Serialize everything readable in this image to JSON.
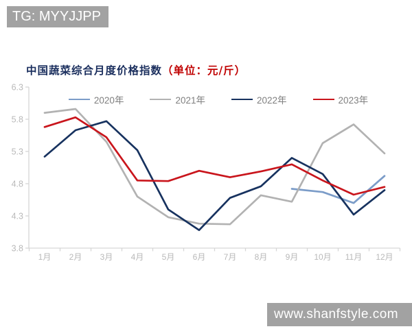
{
  "watermarks": {
    "top_left": "TG: MYYJJPP",
    "bottom_right": "www.shanfstyle.com"
  },
  "title": {
    "main": "中国蔬菜综合月度价格指数",
    "unit": "（单位：元/斤）"
  },
  "colors": {
    "title_main": "#1b2f5e",
    "title_unit": "#c00000",
    "axis": "#d6d6d6",
    "tick_label": "#b9b9b9",
    "legend_text": "#7f7f7f",
    "banner_bg": "#a2a2a2"
  },
  "chart_data": {
    "type": "line",
    "title": "中国蔬菜综合月度价格指数（单位：元/斤）",
    "categories": [
      "1月",
      "2月",
      "3月",
      "4月",
      "5月",
      "6月",
      "7月",
      "8月",
      "9月",
      "10月",
      "11月",
      "12月"
    ],
    "series": [
      {
        "name": "2020年",
        "color": "#7b9cc8",
        "values": [
          null,
          null,
          null,
          null,
          null,
          null,
          null,
          null,
          4.72,
          4.67,
          4.5,
          4.92
        ]
      },
      {
        "name": "2021年",
        "color": "#b2b2b2",
        "values": [
          5.9,
          5.96,
          5.45,
          4.6,
          4.28,
          4.18,
          4.17,
          4.62,
          4.52,
          5.43,
          5.72,
          5.27
        ]
      },
      {
        "name": "2022年",
        "color": "#17325f",
        "values": [
          5.22,
          5.63,
          5.77,
          5.32,
          4.4,
          4.08,
          4.58,
          4.76,
          5.2,
          4.95,
          4.32,
          4.7
        ]
      },
      {
        "name": "2023年",
        "color": "#c9151c",
        "values": [
          5.68,
          5.83,
          5.52,
          4.85,
          4.84,
          5.0,
          4.9,
          4.99,
          5.1,
          4.85,
          4.63,
          4.75
        ]
      }
    ],
    "ylim": [
      3.8,
      6.3
    ],
    "ytick_step": 0.5,
    "ytick_labels": [
      "6.3",
      "5.8",
      "5.3",
      "4.8",
      "4.3",
      "3.8"
    ],
    "xlabel": "",
    "ylabel": "",
    "grid": false,
    "legend_position": "top"
  }
}
